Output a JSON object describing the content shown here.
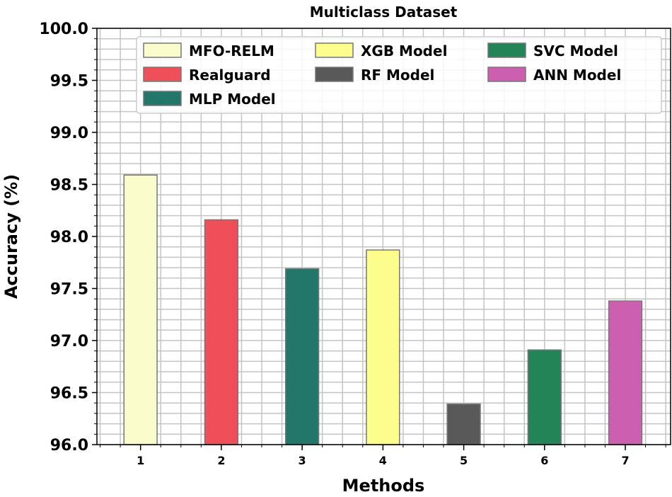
{
  "chart_data": {
    "type": "bar",
    "title": "Multiclass Dataset",
    "xlabel": "Methods",
    "ylabel": "Accuracy (%)",
    "categories": [
      "1",
      "2",
      "3",
      "4",
      "5",
      "6",
      "7"
    ],
    "series": [
      {
        "name": "MFO-RELM",
        "value": 98.59,
        "color": "#fafccc"
      },
      {
        "name": "Realguard",
        "value": 98.16,
        "color": "#ef4f58"
      },
      {
        "name": "MLP Model",
        "value": 97.69,
        "color": "#22776a"
      },
      {
        "name": "XGB Model",
        "value": 97.87,
        "color": "#fdfd8e"
      },
      {
        "name": "RF Model",
        "value": 96.39,
        "color": "#595959"
      },
      {
        "name": "SVC Model",
        "value": 96.91,
        "color": "#238457"
      },
      {
        "name": "ANN Model",
        "value": 97.38,
        "color": "#cc5faf"
      }
    ],
    "ylim": [
      96.0,
      100.0
    ],
    "xlim": [
      0.46,
      7.56
    ],
    "yticks": [
      "96.0",
      "96.5",
      "97.0",
      "97.5",
      "98.0",
      "98.5",
      "99.0",
      "99.5",
      "100.0"
    ],
    "grid": true,
    "legend_placement": "top",
    "legend_order": [
      0,
      3,
      5,
      1,
      4,
      6,
      2
    ]
  }
}
